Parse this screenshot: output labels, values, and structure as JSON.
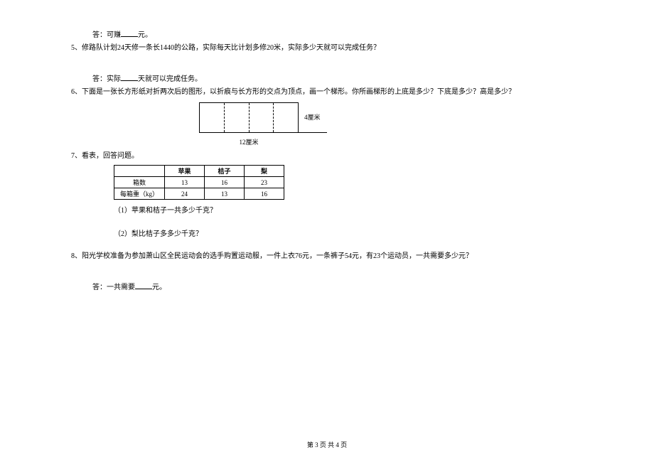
{
  "q4": {
    "answer_prefix": "答：可赚",
    "answer_suffix": "元。"
  },
  "q5": {
    "text": "5、修路队计划24天修一条长1440的公路，实际每天比计划多修20米，实际多少天就可以完成任务？",
    "answer_prefix": "答：实际",
    "answer_suffix": "天就可以完成任务。"
  },
  "q6": {
    "text1": "6、下面是一张长方形纸对折两次后的图形，以折痕与长方形的交点为顶点，画一个梯形。你所画梯形的上底是多少？下底是多少？高是多少？",
    "side_label": "4厘米",
    "bottom_label": "12厘米"
  },
  "q7": {
    "text": "7、看表，回答问题。",
    "table": {
      "headers": [
        "",
        "苹果",
        "桔子",
        "梨"
      ],
      "rows": [
        {
          "label": "箱数",
          "values": [
            "13",
            "16",
            "23"
          ]
        },
        {
          "label": "每箱重（kg）",
          "values": [
            "24",
            "13",
            "16"
          ]
        }
      ]
    },
    "sub1": "（1）苹果和桔子一共多少千克？",
    "sub2": "（2）梨比桔子多多少千克？"
  },
  "q8": {
    "text": "8、阳光学校准备为参加萧山区全民运动会的选手购置运动服，一件上衣76元，一条裤子54元，有23个运动员，一共需要多少元？",
    "answer_prefix": "答：一共需要",
    "answer_suffix": "元。"
  },
  "footer": "第 3 页 共 4 页"
}
